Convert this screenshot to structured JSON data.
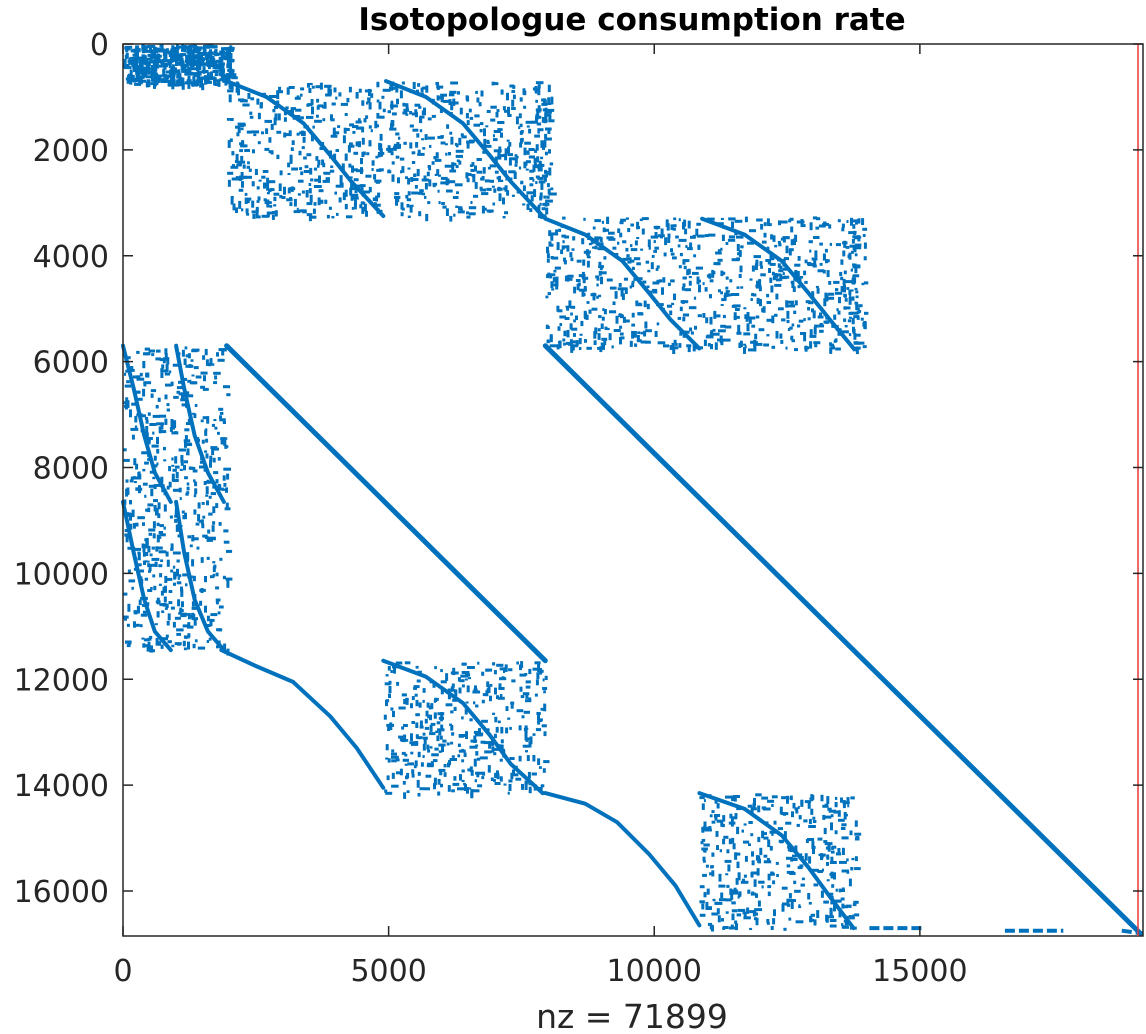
{
  "chart_data": {
    "type": "scatter",
    "title": "Isotopologue consumption rate",
    "xlabel": "nz = 71899",
    "ylabel": "",
    "xlim": [
      0,
      19200
    ],
    "ylim": [
      16850,
      0
    ],
    "y_reversed": true,
    "xticks": [
      0,
      5000,
      10000,
      15000
    ],
    "xtick_labels": [
      "0",
      "5000",
      "10000",
      "15000"
    ],
    "yticks": [
      0,
      2000,
      4000,
      6000,
      8000,
      10000,
      12000,
      14000,
      16000
    ],
    "ytick_labels": [
      "0",
      "2000",
      "4000",
      "6000",
      "8000",
      "10000",
      "12000",
      "14000",
      "16000"
    ],
    "grid": false,
    "marker_color": "#0072BD",
    "edge_line_color": "#E8393A",
    "nz": 71899,
    "diagonal_segments": [
      {
        "name": "diagonal-segment-1",
        "from": [
          1950,
          5700
        ],
        "to": [
          7950,
          11650
        ]
      },
      {
        "name": "diagonal-segment-2",
        "from": [
          7950,
          5700
        ],
        "to": [
          19150,
          16800
        ]
      }
    ],
    "curve_segments": [
      {
        "name": "staircase-curve-1",
        "points": [
          [
            1850,
            11450
          ],
          [
            2500,
            11750
          ],
          [
            3200,
            12050
          ],
          [
            3900,
            12700
          ],
          [
            4400,
            13300
          ],
          [
            4900,
            14050
          ]
        ]
      },
      {
        "name": "staircase-curve-2",
        "points": [
          [
            7950,
            14150
          ],
          [
            8700,
            14350
          ],
          [
            9300,
            14700
          ],
          [
            9900,
            15300
          ],
          [
            10400,
            15900
          ],
          [
            10850,
            16650
          ]
        ]
      },
      {
        "name": "arc-curve-1",
        "points": [
          [
            1950,
            700
          ],
          [
            2700,
            1000
          ],
          [
            3400,
            1500
          ],
          [
            3900,
            2100
          ],
          [
            4300,
            2600
          ],
          [
            4900,
            3250
          ]
        ]
      },
      {
        "name": "arc-curve-2",
        "points": [
          [
            4950,
            700
          ],
          [
            5700,
            1000
          ],
          [
            6400,
            1500
          ],
          [
            6900,
            2100
          ],
          [
            7300,
            2600
          ],
          [
            7900,
            3250
          ]
        ]
      },
      {
        "name": "arc-curve-3",
        "points": [
          [
            7950,
            3300
          ],
          [
            8700,
            3600
          ],
          [
            9400,
            4100
          ],
          [
            9900,
            4700
          ],
          [
            10300,
            5200
          ],
          [
            10850,
            5750
          ]
        ]
      },
      {
        "name": "arc-curve-4",
        "points": [
          [
            10900,
            3300
          ],
          [
            11700,
            3600
          ],
          [
            12400,
            4100
          ],
          [
            12900,
            4700
          ],
          [
            13300,
            5200
          ],
          [
            13750,
            5750
          ]
        ]
      },
      {
        "name": "arc-curve-5",
        "points": [
          [
            4900,
            11650
          ],
          [
            5700,
            11950
          ],
          [
            6400,
            12450
          ],
          [
            6900,
            13050
          ],
          [
            7300,
            13600
          ],
          [
            7900,
            14150
          ]
        ]
      },
      {
        "name": "arc-curve-6",
        "points": [
          [
            10850,
            14150
          ],
          [
            11700,
            14450
          ],
          [
            12400,
            14950
          ],
          [
            12900,
            15550
          ],
          [
            13300,
            16100
          ],
          [
            13750,
            16700
          ]
        ]
      },
      {
        "name": "left-curve-1",
        "points": [
          [
            0,
            5700
          ],
          [
            200,
            6500
          ],
          [
            400,
            7400
          ],
          [
            600,
            8100
          ],
          [
            900,
            8650
          ]
        ]
      },
      {
        "name": "left-curve-2",
        "points": [
          [
            1000,
            5700
          ],
          [
            1150,
            6500
          ],
          [
            1350,
            7400
          ],
          [
            1600,
            8100
          ],
          [
            1900,
            8650
          ]
        ]
      },
      {
        "name": "left-curve-3",
        "points": [
          [
            0,
            8650
          ],
          [
            200,
            9600
          ],
          [
            400,
            10500
          ],
          [
            600,
            11100
          ],
          [
            900,
            11450
          ]
        ]
      },
      {
        "name": "left-curve-4",
        "points": [
          [
            1000,
            8650
          ],
          [
            1150,
            9600
          ],
          [
            1350,
            10500
          ],
          [
            1600,
            11100
          ],
          [
            1900,
            11450
          ]
        ]
      }
    ],
    "scatter_blocks": [
      {
        "name": "top-left-block",
        "x": [
          0,
          2050
        ],
        "y": [
          0,
          750
        ]
      },
      {
        "name": "upper-block-1",
        "x": [
          1950,
          4900
        ],
        "y": [
          700,
          3250
        ]
      },
      {
        "name": "upper-block-2",
        "x": [
          4950,
          7950
        ],
        "y": [
          700,
          3250
        ]
      },
      {
        "name": "vertical-strip-1",
        "x": [
          7750,
          8050
        ],
        "y": [
          700,
          3250
        ]
      },
      {
        "name": "middle-block-1",
        "x": [
          7950,
          10850
        ],
        "y": [
          3250,
          5750
        ]
      },
      {
        "name": "middle-block-2",
        "x": [
          10900,
          13800
        ],
        "y": [
          3250,
          5750
        ]
      },
      {
        "name": "vertical-strip-2",
        "x": [
          13650,
          13950
        ],
        "y": [
          3250,
          5750
        ]
      },
      {
        "name": "left-block-1",
        "x": [
          0,
          1950
        ],
        "y": [
          5700,
          8650
        ]
      },
      {
        "name": "left-block-2",
        "x": [
          0,
          1950
        ],
        "y": [
          8650,
          11450
        ]
      },
      {
        "name": "lower-block-1",
        "x": [
          4900,
          7950
        ],
        "y": [
          11650,
          14150
        ]
      },
      {
        "name": "lower-block-2",
        "x": [
          10850,
          13800
        ],
        "y": [
          14150,
          16700
        ]
      }
    ],
    "bottom_dashes": [
      {
        "name": "bottom-dash-1",
        "from": [
          14050,
          16700
        ],
        "to": [
          15100,
          16700
        ]
      },
      {
        "name": "bottom-dash-2",
        "from": [
          16600,
          16750
        ],
        "to": [
          17700,
          16750
        ]
      },
      {
        "name": "bottom-dash-3",
        "from": [
          18800,
          16750
        ],
        "to": [
          19200,
          16800
        ]
      }
    ]
  }
}
